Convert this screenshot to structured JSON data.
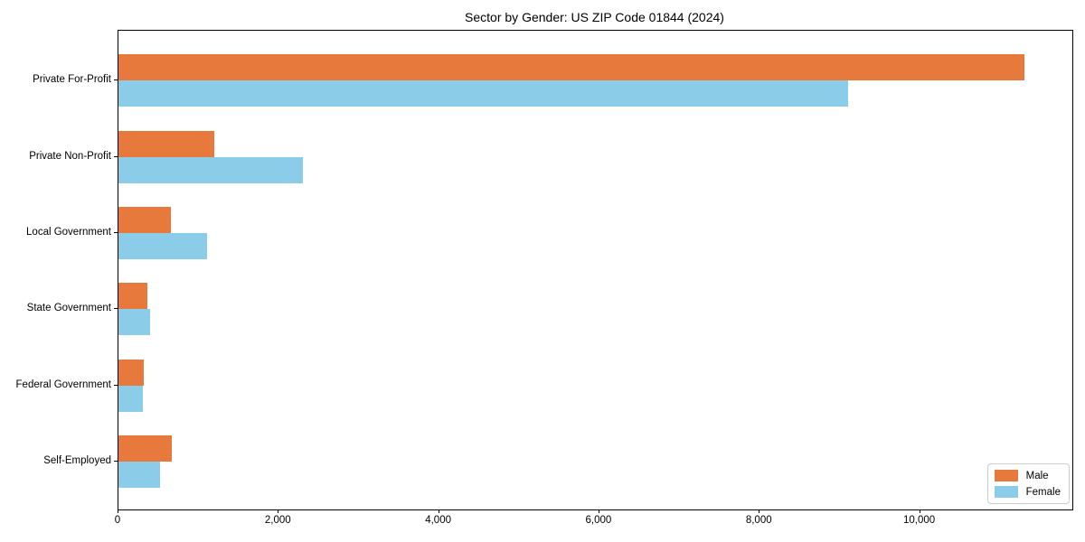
{
  "title": "Sector by Gender: US ZIP Code 01844 (2024)",
  "chart_data": {
    "type": "bar",
    "orientation": "horizontal",
    "title": "Sector by Gender: US ZIP Code 01844 (2024)",
    "categories": [
      "Private For-Profit",
      "Private Non-Profit",
      "Local Government",
      "State Government",
      "Federal Government",
      "Self-Employed"
    ],
    "series": [
      {
        "name": "Male",
        "color": "#e8793d",
        "values": [
          11300,
          1200,
          650,
          360,
          320,
          670
        ]
      },
      {
        "name": "Female",
        "color": "#8bcde8",
        "values": [
          9100,
          2300,
          1100,
          400,
          300,
          520
        ]
      }
    ],
    "xlabel": "",
    "ylabel": "",
    "xlim": [
      0,
      11900
    ],
    "xticks": [
      0,
      2000,
      4000,
      6000,
      8000,
      10000
    ],
    "xtick_labels": [
      "0",
      "2,000",
      "4,000",
      "6,000",
      "8,000",
      "10,000"
    ],
    "grid": false,
    "legend": {
      "position": "lower right",
      "items": [
        "Male",
        "Female"
      ]
    }
  }
}
